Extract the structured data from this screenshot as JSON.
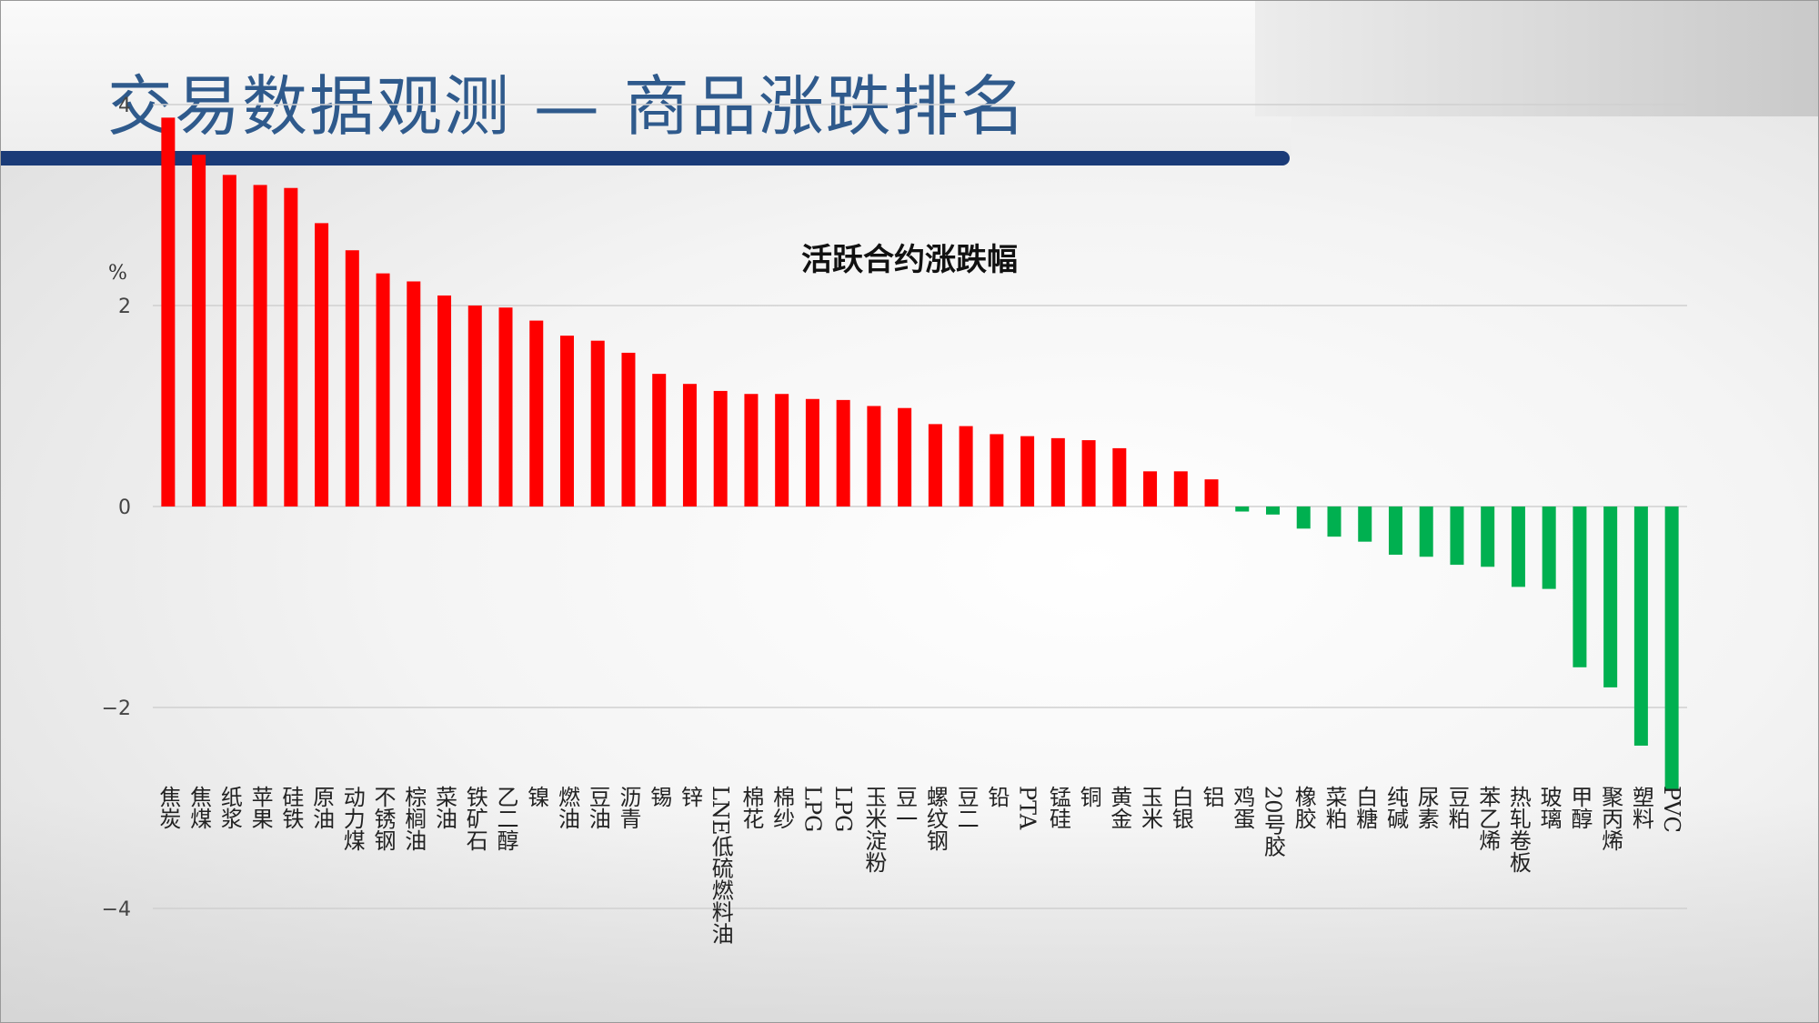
{
  "page": {
    "title": "交易数据观测 — 商品涨跌排名"
  },
  "colors": {
    "up": "#ff0000",
    "down": "#00b050",
    "title_bar": "#1a3b78",
    "title_text": "#2f5a8c"
  },
  "chart_data": {
    "type": "bar",
    "title": "活跃合约涨跌幅",
    "ylabel": "%",
    "xlabel": "",
    "ylim": [
      -4,
      4
    ],
    "yticks": [
      "4",
      "2",
      "0",
      "−2",
      "−4"
    ],
    "grid": true,
    "categories": [
      "焦炭",
      "焦煤",
      "纸浆",
      "苹果",
      "硅铁",
      "原油",
      "动力煤",
      "不锈钢",
      "棕榈油",
      "菜油",
      "铁矿石",
      "乙二醇",
      "镍",
      "燃油",
      "豆油",
      "沥青",
      "锡",
      "锌",
      "LNE低硫燃料油",
      "棉花",
      "棉纱",
      "LPG",
      "LPG",
      "玉米淀粉",
      "豆一",
      "螺纹钢",
      "豆二",
      "铅",
      "PTA",
      "锰硅",
      "铜",
      "黄金",
      "玉米",
      "白银",
      "铝",
      "鸡蛋",
      "20号胶",
      "橡胶",
      "菜粕",
      "白糖",
      "纯碱",
      "尿素",
      "豆粕",
      "苯乙烯",
      "热轧卷板",
      "玻璃",
      "甲醇",
      "聚丙烯",
      "塑料",
      "PVC"
    ],
    "values": [
      3.87,
      3.5,
      3.3,
      3.2,
      3.17,
      2.82,
      2.55,
      2.32,
      2.24,
      2.1,
      2.0,
      1.98,
      1.85,
      1.7,
      1.65,
      1.53,
      1.32,
      1.22,
      1.15,
      1.12,
      1.12,
      1.07,
      1.06,
      1.0,
      0.98,
      0.82,
      0.8,
      0.72,
      0.7,
      0.68,
      0.66,
      0.58,
      0.35,
      0.35,
      0.27,
      -0.05,
      -0.08,
      -0.22,
      -0.3,
      -0.35,
      -0.48,
      -0.5,
      -0.58,
      -0.6,
      -0.8,
      -0.82,
      -1.6,
      -1.8,
      -2.38,
      -2.82
    ]
  }
}
